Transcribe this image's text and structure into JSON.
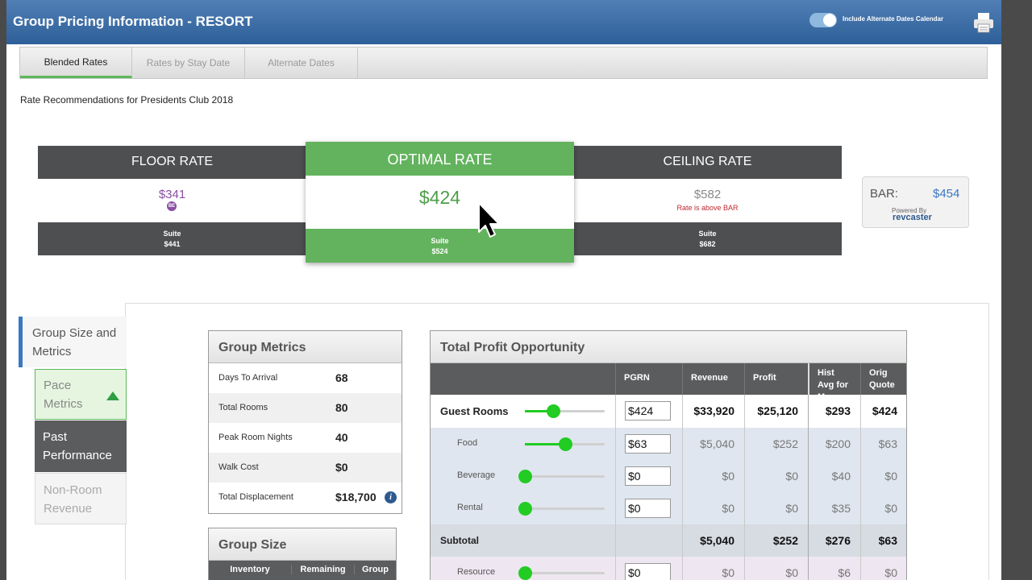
{
  "window": {
    "title": "Group Pricing Information - RESORT",
    "toggle_label": "Include Alternate Dates Calendar",
    "toggle_on": true
  },
  "tabs": [
    {
      "label": "Blended Rates",
      "active": true
    },
    {
      "label": "Rates by Stay Date",
      "active": false
    },
    {
      "label": "Alternate Dates",
      "active": false
    }
  ],
  "subtitle": "Rate Recommendations for Presidents Club 2018",
  "rates": {
    "floor": {
      "title": "FLOOR RATE",
      "value": "$341",
      "badge": "BE",
      "suite_label": "Suite",
      "suite_value": "$441"
    },
    "optimal": {
      "title": "OPTIMAL RATE",
      "value": "$424",
      "suite_label": "Suite",
      "suite_value": "$524"
    },
    "ceiling": {
      "title": "CEILING RATE",
      "value": "$582",
      "note": "Rate is above BAR",
      "suite_label": "Suite",
      "suite_value": "$682"
    }
  },
  "bar": {
    "label": "BAR:",
    "value": "$454",
    "powered_by": "Powered By",
    "brand": "revcaster"
  },
  "sidebar": {
    "main": "Group Size and Metrics",
    "items": [
      "Pace Metrics",
      "Past Performance",
      "Non-Room Revenue"
    ]
  },
  "group_metrics": {
    "title": "Group Metrics",
    "rows": [
      {
        "label": "Days To Arrival",
        "value": "68"
      },
      {
        "label": "Total Rooms",
        "value": "80"
      },
      {
        "label": "Peak Room Nights",
        "value": "40"
      },
      {
        "label": "Walk Cost",
        "value": "$0"
      },
      {
        "label": "Total Displacement",
        "value": "$18,700"
      }
    ],
    "info_glyph": "i"
  },
  "group_size": {
    "title": "Group Size",
    "columns": [
      "Inventory",
      "Remaining",
      "Group"
    ]
  },
  "profit": {
    "title": "Total Profit Opportunity",
    "columns": [
      "PGRN",
      "Revenue",
      "Profit",
      "Hist Avg for May",
      "Orig Quote"
    ],
    "rows": [
      {
        "label": "Guest Rooms",
        "input": "$424",
        "slider": 0.35,
        "revenue": "$33,920",
        "profit": "$25,120",
        "hist": "$293",
        "orig": "$424"
      },
      {
        "label": "Food",
        "input": "$63",
        "slider": 0.5,
        "revenue": "$5,040",
        "profit": "$252",
        "hist": "$200",
        "orig": "$63"
      },
      {
        "label": "Beverage",
        "input": "$0",
        "slider": 0.0,
        "revenue": "$0",
        "profit": "$0",
        "hist": "$40",
        "orig": "$0"
      },
      {
        "label": "Rental",
        "input": "$0",
        "slider": 0.0,
        "revenue": "$0",
        "profit": "$0",
        "hist": "$35",
        "orig": "$0"
      },
      {
        "label": "Subtotal",
        "revenue": "$5,040",
        "profit": "$252",
        "hist": "$276",
        "orig": "$63"
      },
      {
        "label": "Resource",
        "input": "$0",
        "slider": 0.0,
        "revenue": "$0",
        "profit": "$0",
        "hist": "$6",
        "orig": "$0"
      }
    ]
  },
  "colors": {
    "accent_green": "#63b35e",
    "header_blue": "#3a6aa6",
    "dark_header": "#4e4f51",
    "floor_purple": "#8a4fa3",
    "bar_blue": "#3b78c1"
  }
}
